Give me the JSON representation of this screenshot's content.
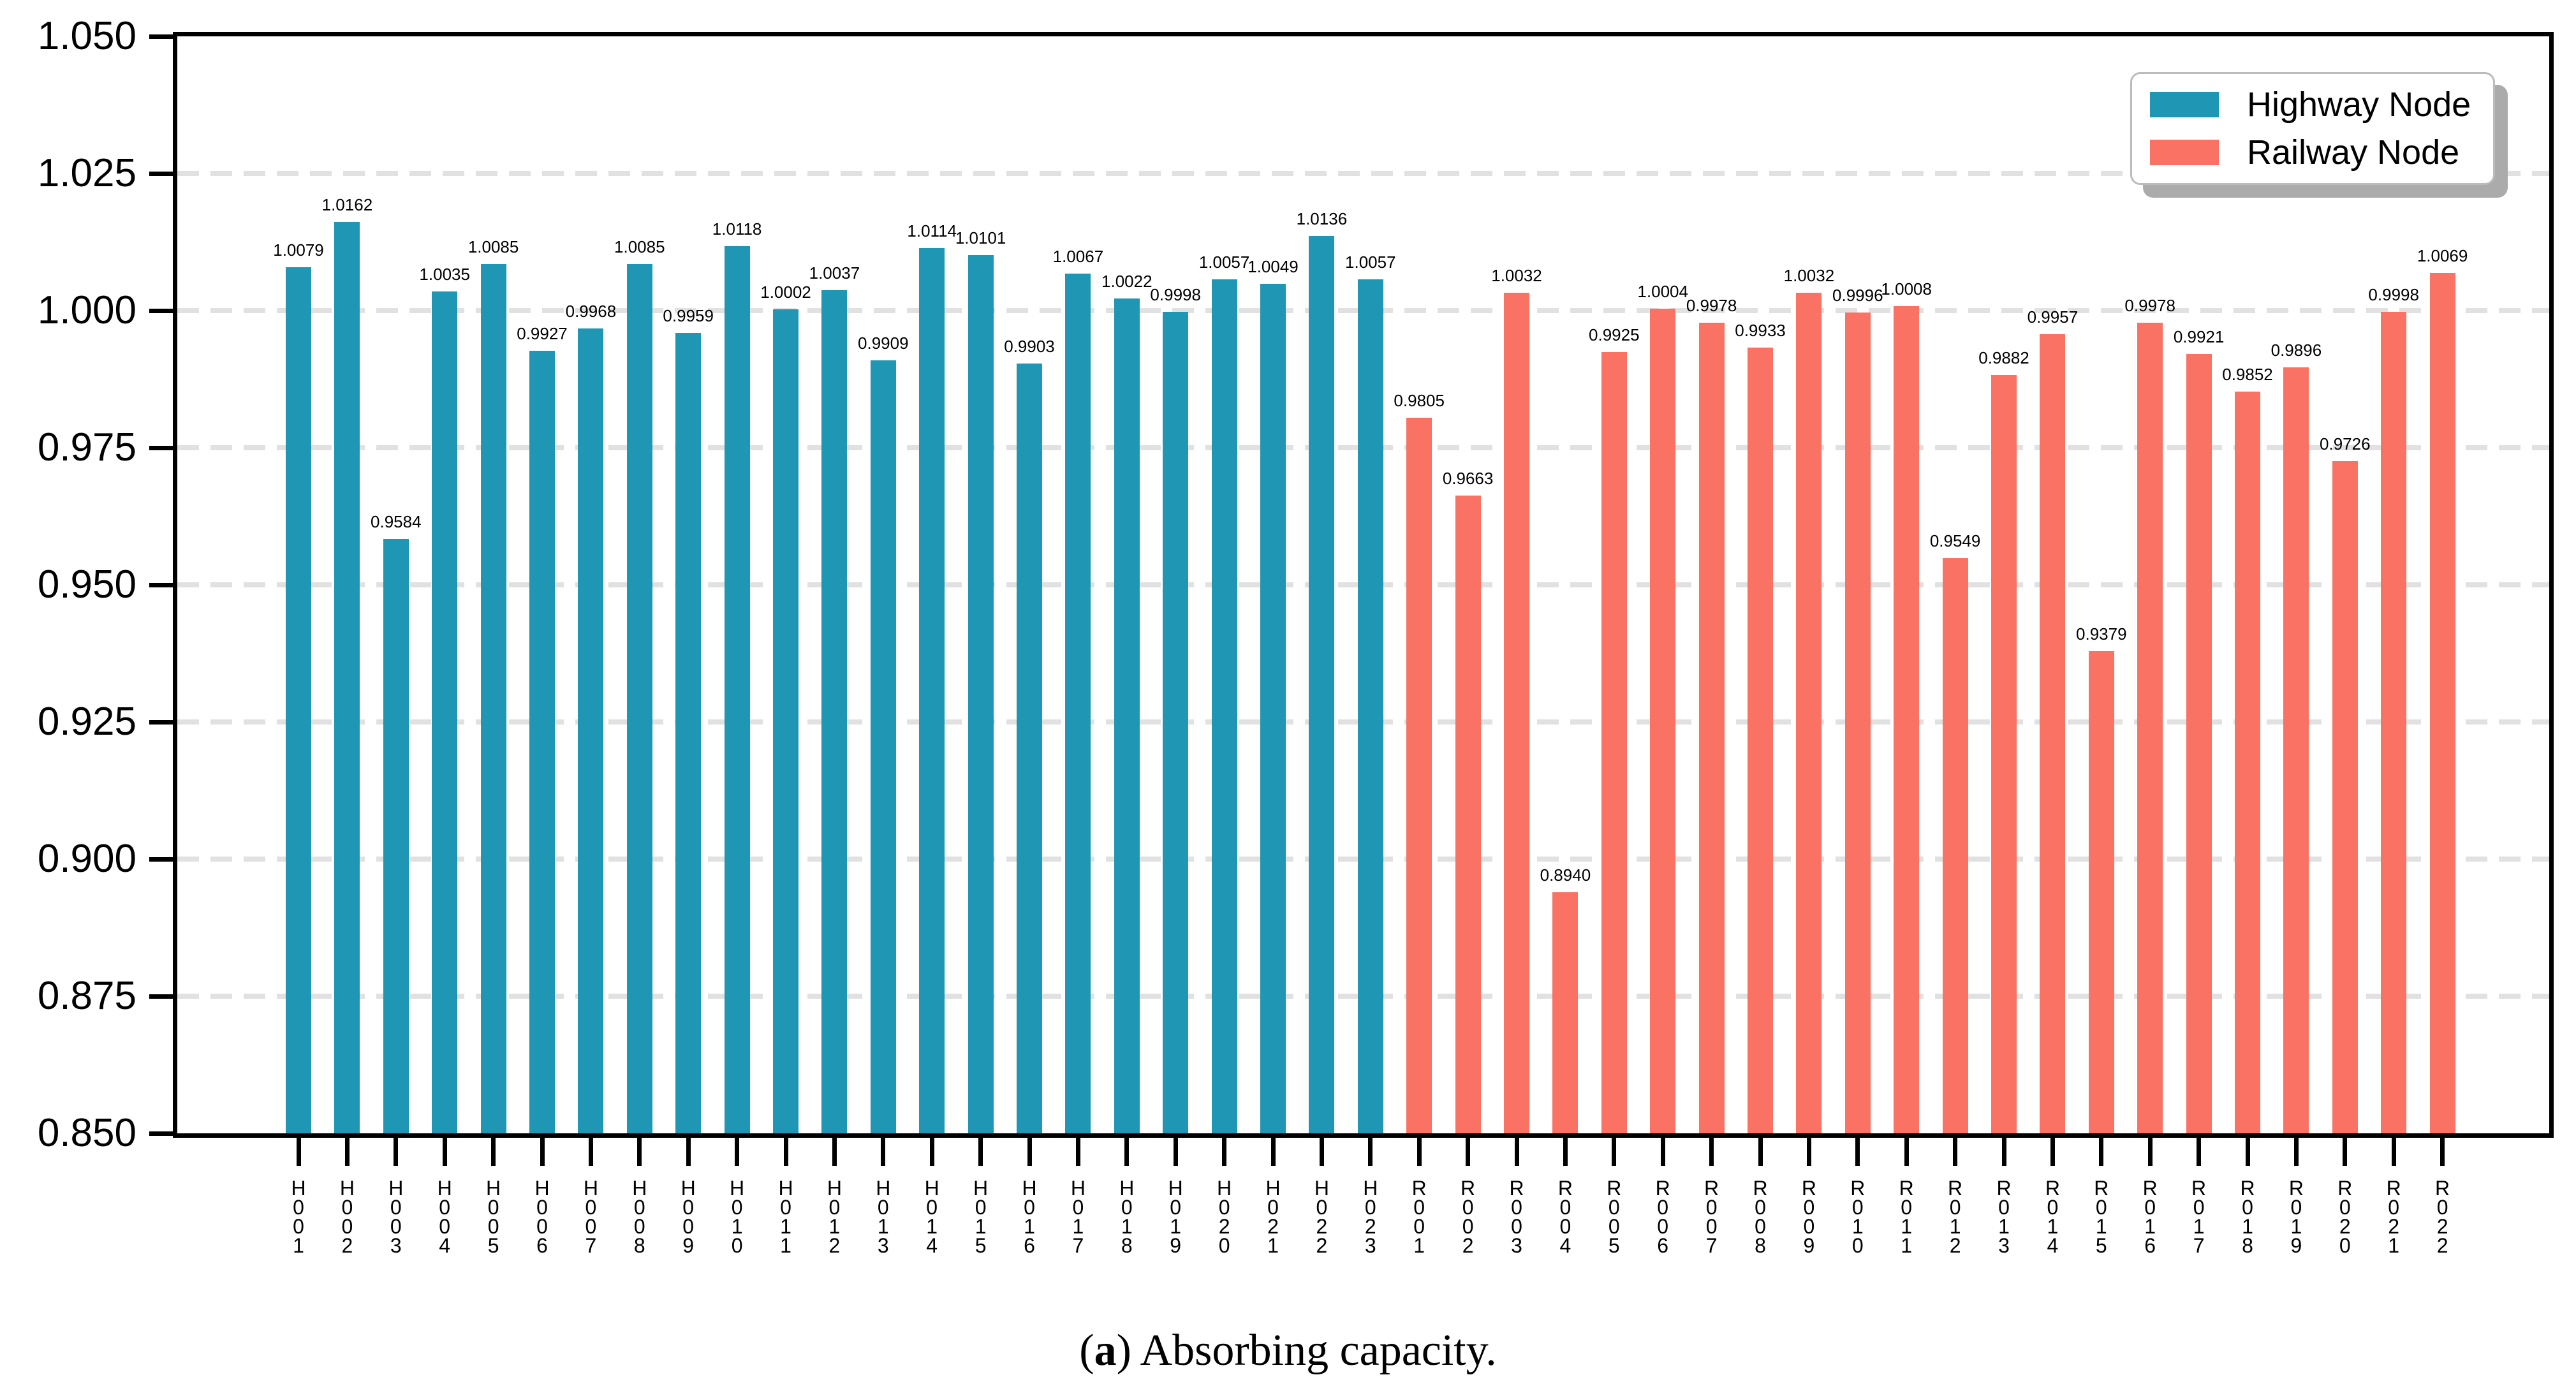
{
  "figure": {
    "background": "#ffffff"
  },
  "caption": {
    "prefix": "(",
    "bold": "a",
    "suffix": ") Absorbing capacity."
  },
  "legend": {
    "position": "upper right",
    "items": [
      {
        "label": "Highway Node",
        "color": "#1E96B4"
      },
      {
        "label": "Railway Node",
        "color": "#FA7264"
      }
    ]
  },
  "y_axis": {
    "tick_labels": [
      "1.050",
      "1.025",
      "1.000",
      "0.975",
      "0.950",
      "0.925",
      "0.900",
      "0.875",
      "0.850"
    ],
    "min": 0.85,
    "max": 1.05,
    "step": 0.025,
    "grid": "dashed"
  },
  "chart_data": {
    "type": "bar",
    "title": "",
    "xlabel": "",
    "ylabel": "",
    "ylim": [
      0.85,
      1.05
    ],
    "grid": true,
    "legend_position": "upper right",
    "value_label_decimals": 4,
    "series": [
      {
        "name": "Highway Node",
        "color": "#1E96B4",
        "categories": [
          "H001",
          "H002",
          "H003",
          "H004",
          "H005",
          "H006",
          "H007",
          "H008",
          "H009",
          "H010",
          "H011",
          "H012",
          "H013",
          "H014",
          "H015",
          "H016",
          "H017",
          "H018",
          "H019",
          "H020",
          "H021",
          "H022",
          "H023"
        ],
        "values": [
          1.0079,
          1.0162,
          0.9584,
          1.0035,
          1.0085,
          0.9927,
          0.9968,
          1.0085,
          0.9959,
          1.0118,
          1.0002,
          1.0037,
          0.9909,
          1.0114,
          1.0101,
          0.9903,
          1.0067,
          1.0022,
          0.9998,
          1.0057,
          1.0049,
          1.0136,
          1.0057
        ]
      },
      {
        "name": "Railway Node",
        "color": "#FA7264",
        "categories": [
          "R001",
          "R002",
          "R003",
          "R004",
          "R005",
          "R006",
          "R007",
          "R008",
          "R009",
          "R010",
          "R011",
          "R012",
          "R013",
          "R014",
          "R015",
          "R016",
          "R017",
          "R018",
          "R019",
          "R020",
          "R021",
          "R022"
        ],
        "values": [
          0.9805,
          0.9663,
          1.0032,
          0.894,
          0.9925,
          1.0004,
          0.9978,
          0.9933,
          1.0032,
          0.9996,
          1.0008,
          0.9549,
          0.9882,
          0.9957,
          0.9379,
          0.9978,
          0.9921,
          0.9852,
          0.9896,
          0.9726,
          0.9998,
          1.0069
        ]
      }
    ]
  }
}
